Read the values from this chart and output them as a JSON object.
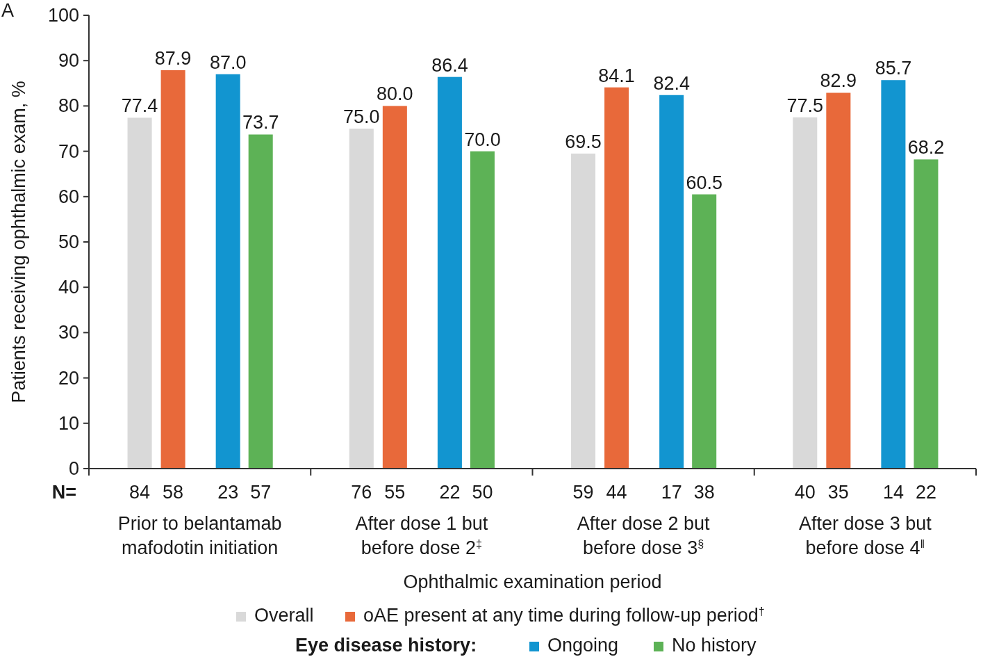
{
  "chart_data": {
    "type": "bar",
    "xlabel": "Ophthalmic examination period",
    "ylabel": "Patients receiving ophthalmic exam, %",
    "categories": [
      "Prior to belantamab mafodotin initiation",
      "After dose 1 but before dose 2$^{‡}$",
      "After dose 2 but before dose 3$^{§}$",
      "After dose 3 but before dose 4$^{‖}$"
    ],
    "series": [
      {
        "name": "Overall",
        "color": "#d9d9d9",
        "values": [
          77.4,
          75.0,
          69.5,
          77.5
        ],
        "value_labels": [
          "77.4",
          "75.0",
          "69.5",
          "77.5"
        ]
      },
      {
        "name": "oAE present at any time during follow-up period$^{†}$",
        "color": "#e8693a",
        "values": [
          87.9,
          80.0,
          84.1,
          82.9
        ],
        "value_labels": [
          "87.9",
          "80.0",
          "84.1",
          "82.9"
        ]
      },
      {
        "name": "Ongoing",
        "color": "#1295d0",
        "values": [
          87.0,
          86.4,
          82.4,
          85.7
        ],
        "value_labels": [
          "87.0",
          "86.4",
          "82.4",
          "85.7"
        ]
      },
      {
        "name": "No history",
        "color": "#5db256",
        "values": [
          73.7,
          70.0,
          60.5,
          68.2
        ],
        "value_labels": [
          "73.7",
          "70.0",
          "60.5",
          "68.2"
        ]
      }
    ],
    "legend_title": "Eye disease history:",
    "ylim": [
      0,
      100
    ],
    "yticks": [
      0,
      10,
      20,
      30,
      40,
      50,
      60,
      70,
      80,
      90,
      100
    ],
    "grid": false,
    "legend": "bottom",
    "annotations": [
      "A",
      "N=",
      "84",
      "58",
      "23",
      "57",
      "76",
      "55",
      "22",
      "50",
      "59",
      "44",
      "17",
      "38",
      "40",
      "35",
      "14",
      "22"
    ]
  }
}
